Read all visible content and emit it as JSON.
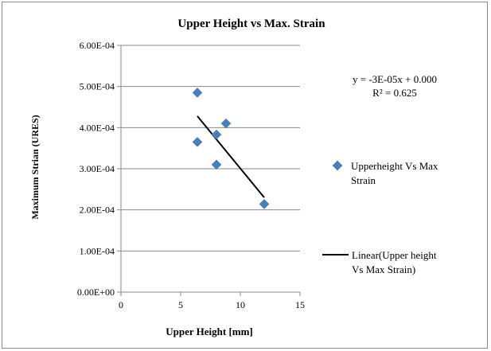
{
  "chart_data": {
    "type": "scatter",
    "title": "Upper Height vs Max. Strain",
    "xlabel": "Upper Height [mm]",
    "ylabel": "Maximum Strian (URES)",
    "xlim": [
      0,
      15
    ],
    "ylim": [
      0,
      0.0006
    ],
    "x_ticks": [
      0,
      5,
      10,
      15
    ],
    "x_tick_labels": [
      "0",
      "5",
      "10",
      "15"
    ],
    "y_ticks": [
      0,
      0.0001,
      0.0002,
      0.0003,
      0.0004,
      0.0005,
      0.0006
    ],
    "y_tick_labels": [
      "0.00E+00",
      "1.00E-04",
      "2.00E-04",
      "3.00E-04",
      "4.00E-04",
      "5.00E-04",
      "6.00E-04"
    ],
    "grid": "horizontal major gridlines",
    "series": [
      {
        "name": "Upperheight Vs Max Strain",
        "kind": "scatter",
        "marker": "diamond",
        "color": "#4a7ebb",
        "points": [
          {
            "x": 6.4,
            "y": 0.000485
          },
          {
            "x": 6.4,
            "y": 0.000365
          },
          {
            "x": 8.0,
            "y": 0.000383
          },
          {
            "x": 8.0,
            "y": 0.00031
          },
          {
            "x": 8.8,
            "y": 0.00041
          },
          {
            "x": 12.0,
            "y": 0.000214
          }
        ]
      },
      {
        "name": "Linear(Upper height Vs Max Strain)",
        "kind": "trendline",
        "color": "#000000",
        "x": [
          6.4,
          12.0
        ],
        "y": [
          0.000428,
          0.00023
        ]
      }
    ],
    "equation_line1": "y = -3E-05x + 0.000",
    "equation_line2": "R² = 0.625",
    "legend": {
      "placement": "right",
      "entries": [
        {
          "lines": [
            "Upperheight Vs Max",
            "Strain"
          ],
          "marker": "diamond"
        },
        {
          "lines": [
            "Linear(Upper height",
            "Vs Max Strain)"
          ],
          "marker": "line"
        }
      ]
    }
  }
}
